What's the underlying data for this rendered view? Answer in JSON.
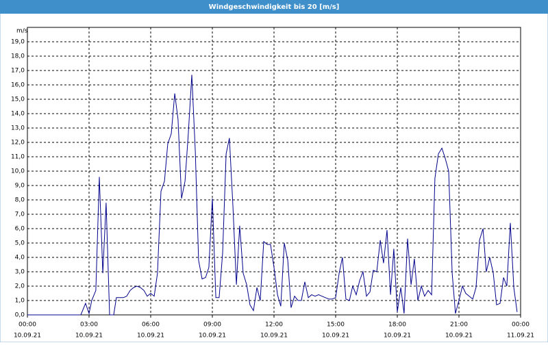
{
  "chart_data": {
    "type": "line",
    "title": "Windgeschwindigkeit bis 20 [m/s]",
    "y_label": "m/s",
    "color": "#00008b",
    "grid": true,
    "x": [
      0,
      2.6,
      2.83,
      3.0,
      3.13,
      3.33,
      3.5,
      3.67,
      3.83,
      4.0,
      4.2,
      4.33,
      4.67,
      4.83,
      5.0,
      5.17,
      5.33,
      5.5,
      5.67,
      5.83,
      6.0,
      6.17,
      6.33,
      6.5,
      6.67,
      6.83,
      7.0,
      7.17,
      7.33,
      7.5,
      7.67,
      7.83,
      8.0,
      8.17,
      8.33,
      8.5,
      8.67,
      8.83,
      9.0,
      9.17,
      9.33,
      9.5,
      9.67,
      9.83,
      10.0,
      10.17,
      10.33,
      10.5,
      10.67,
      10.83,
      11.0,
      11.17,
      11.33,
      11.5,
      11.67,
      11.83,
      12.0,
      12.17,
      12.33,
      12.5,
      12.67,
      12.83,
      13.0,
      13.17,
      13.33,
      13.5,
      13.67,
      13.83,
      14.0,
      14.17,
      14.33,
      14.5,
      14.67,
      14.83,
      15.0,
      15.17,
      15.33,
      15.5,
      15.67,
      15.83,
      16.0,
      16.17,
      16.33,
      16.5,
      16.67,
      16.83,
      17.0,
      17.17,
      17.33,
      17.5,
      17.67,
      17.83,
      18.0,
      18.17,
      18.33,
      18.5,
      18.67,
      18.83,
      19.0,
      19.17,
      19.33,
      19.5,
      19.67,
      19.83,
      20.0,
      20.17,
      20.33,
      20.5,
      20.67,
      20.83,
      21.0,
      21.17,
      21.33,
      21.5,
      21.67,
      21.83,
      22.0,
      22.17,
      22.33,
      22.5,
      22.67,
      22.83,
      23.0,
      23.17,
      23.33,
      23.5,
      23.67,
      23.83
    ],
    "values": [
      0,
      0,
      0.8,
      0.1,
      1.0,
      1.7,
      9.6,
      2.9,
      7.8,
      0,
      0,
      1.2,
      1.2,
      1.3,
      1.7,
      1.9,
      2.0,
      1.9,
      1.7,
      1.3,
      1.5,
      1.3,
      2.9,
      8.6,
      9.3,
      11.9,
      12.6,
      15.4,
      13.6,
      8.1,
      9.3,
      12.6,
      16.7,
      11.4,
      3.8,
      2.5,
      2.6,
      3.3,
      8.1,
      1.2,
      1.2,
      4.3,
      11.2,
      12.3,
      7.6,
      2.1,
      6.2,
      2.9,
      2.1,
      0.7,
      0.3,
      1.9,
      1.0,
      5.1,
      4.9,
      4.9,
      3.3,
      1.4,
      0.6,
      5.0,
      3.8,
      0.5,
      1.3,
      1.0,
      1.0,
      2.3,
      1.2,
      1.4,
      1.3,
      1.4,
      1.3,
      1.2,
      1.1,
      1.1,
      1.2,
      2.9,
      4.0,
      1.1,
      1.0,
      2.0,
      1.4,
      2.4,
      3.0,
      1.3,
      1.6,
      3.1,
      3.0,
      5.2,
      3.6,
      5.9,
      1.4,
      4.6,
      0.2,
      1.9,
      0.1,
      5.3,
      2.1,
      3.9,
      1.0,
      2.0,
      1.3,
      1.7,
      1.4,
      9.5,
      11.2,
      11.6,
      10.9,
      10.0,
      2.9,
      0.1,
      1.0,
      2.0,
      1.5,
      1.3,
      1.1,
      1.9,
      5.2,
      6.0,
      3.0,
      4.0,
      2.9,
      0.7,
      0.8,
      2.6,
      2.0,
      6.4,
      1.9,
      0.2
    ],
    "xlim": [
      0,
      24
    ],
    "xticks": [
      {
        "value": 0,
        "label": "00:00"
      },
      {
        "value": 3,
        "label": "03:00"
      },
      {
        "value": 6,
        "label": "06:00"
      },
      {
        "value": 9,
        "label": "09:00"
      },
      {
        "value": 12,
        "label": "12:00"
      },
      {
        "value": 15,
        "label": "15:00"
      },
      {
        "value": 18,
        "label": "18:00"
      },
      {
        "value": 21,
        "label": "21:00"
      },
      {
        "value": 24,
        "label": "00:00"
      }
    ],
    "xtick_dates": [
      "10.09.21",
      "10.09.21",
      "10.09.21",
      "10.09.21",
      "10.09.21",
      "10.09.21",
      "10.09.21",
      "10.09.21",
      "11.09.21"
    ],
    "ylim": [
      0,
      20
    ],
    "yticks": [
      {
        "value": 0,
        "label": "0,0"
      },
      {
        "value": 1,
        "label": "1,0"
      },
      {
        "value": 2,
        "label": "2,0"
      },
      {
        "value": 3,
        "label": "3,0"
      },
      {
        "value": 4,
        "label": "4,0"
      },
      {
        "value": 5,
        "label": "5,0"
      },
      {
        "value": 6,
        "label": "6,0"
      },
      {
        "value": 7,
        "label": "7,0"
      },
      {
        "value": 8,
        "label": "8,0"
      },
      {
        "value": 9,
        "label": "9,0"
      },
      {
        "value": 10,
        "label": "10,0"
      },
      {
        "value": 11,
        "label": "11,0"
      },
      {
        "value": 12,
        "label": "12,0"
      },
      {
        "value": 13,
        "label": "13,0"
      },
      {
        "value": 14,
        "label": "14,0"
      },
      {
        "value": 15,
        "label": "15,0"
      },
      {
        "value": 16,
        "label": "16,0"
      },
      {
        "value": 17,
        "label": "17,0"
      },
      {
        "value": 18,
        "label": "18,0"
      },
      {
        "value": 19,
        "label": "19,0"
      }
    ]
  }
}
